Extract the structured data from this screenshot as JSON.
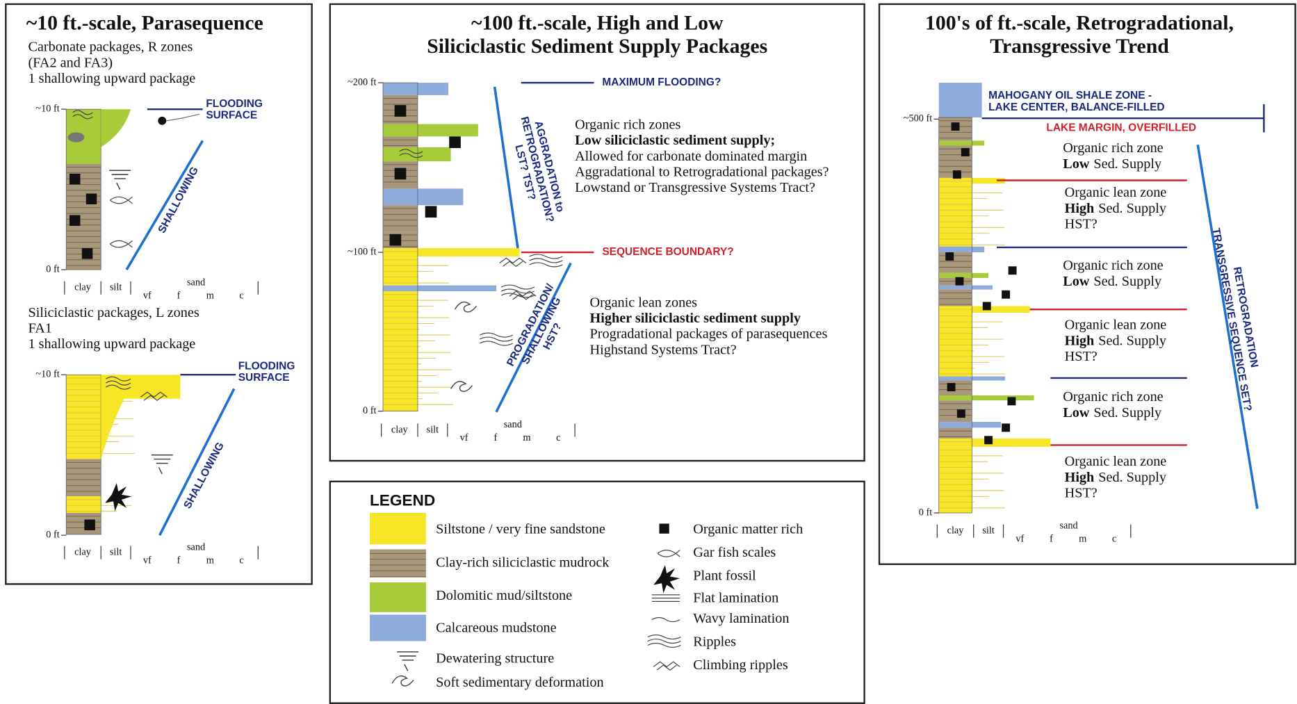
{
  "left_panel": {
    "title": "~10 ft.-scale, Parasequence",
    "carbonate": {
      "lines": [
        "Carbonate packages, R zones",
        "(FA2 and FA3)",
        "1 shallowing upward package"
      ],
      "top": "~10 ft",
      "base": "0 ft",
      "surface": [
        "FLOODING",
        "SURFACE"
      ],
      "trend": "SHALLOWING"
    },
    "siliciclastic": {
      "lines": [
        "Siliciclastic packages, L zones",
        "FA1",
        "1 shallowing upward package"
      ],
      "top": "~10 ft",
      "base": "0 ft",
      "surface": [
        "FLOODING",
        "SURFACE"
      ],
      "trend": "SHALLOWING"
    }
  },
  "grain_size": {
    "clay": "clay",
    "silt": "silt",
    "sand": "sand",
    "classes": [
      "vf",
      "f",
      "m",
      "c"
    ]
  },
  "middle_panel": {
    "title": [
      "~100 ft.-scale, High and Low",
      "Siliciclastic Sediment Supply Packages"
    ],
    "depths": [
      "~200 ft",
      "~100 ft",
      "0 ft"
    ],
    "surfaces": [
      "MAXIMUM FLOODING?",
      "SEQUENCE BOUNDARY?"
    ],
    "upper": {
      "trend": [
        "AGGRADATION to",
        "RETROGRADATION?",
        "LST? TST?"
      ],
      "intro": "Organic rich zones",
      "emphasis": "Low siliciclastic sediment supply;",
      "details": [
        "Allowed for carbonate dominated margin",
        "Aggradational to Retrogradational packages?",
        "Lowstand or Transgressive Systems Tract?"
      ]
    },
    "lower": {
      "trend": [
        "PROGRADATION/",
        "SHALLOWING",
        "HST?"
      ],
      "intro": "Organic lean zones",
      "emphasis": "Higher siliciclastic sediment supply",
      "details": [
        "Progradational packages of parasequences",
        "Highstand Systems Tract?"
      ]
    }
  },
  "right_panel": {
    "title": [
      "100's of ft.-scale, Retrogradational,",
      "Transgressive Trend"
    ],
    "depths": [
      "~500 ft",
      "0 ft"
    ],
    "lake_center": [
      "MAHOGANY OIL SHALE ZONE -",
      "LAKE CENTER, BALANCE-FILLED"
    ],
    "lake_margin": "LAKE MARGIN, OVERFILLED",
    "zones": [
      {
        "zone": "Organic rich zone",
        "level": "Low",
        "supply": "Sed. Supply"
      },
      {
        "zone": "Organic lean zone",
        "level": "High",
        "supply": "Sed. Supply",
        "tract": "HST?"
      },
      {
        "zone": "Organic rich zone",
        "level": "Low",
        "supply": "Sed. Supply"
      },
      {
        "zone": "Organic lean zone",
        "level": "High",
        "supply": "Sed. Supply",
        "tract": "HST?"
      },
      {
        "zone": "Organic rich zone",
        "level": "Low",
        "supply": "Sed. Supply"
      },
      {
        "zone": "Organic lean zone",
        "level": "High",
        "supply": "Sed. Supply",
        "tract": "HST?"
      }
    ],
    "trend": [
      "RETROGRADATION",
      "TRANSGRESSIVE SEQUENCE SET?"
    ]
  },
  "legend": {
    "title": "LEGEND",
    "lithologies": [
      {
        "label": "Siltstone / very fine sandstone",
        "color": "#f6e626"
      },
      {
        "label": "Clay-rich siliciclastic mudrock",
        "color": "#a8977a"
      },
      {
        "label": "Dolomitic mud/siltstone",
        "color": "#a8cb3a"
      },
      {
        "label": "Calcareous mudstone",
        "color": "#8fabdc"
      }
    ],
    "structures": [
      "Dewatering structure",
      "Soft sedimentary deformation"
    ],
    "symbols": [
      "Organic matter rich",
      "Gar fish scales",
      "Plant fossil",
      "Flat lamination",
      "Wavy lamination",
      "Ripples",
      "Climbing ripples"
    ]
  }
}
